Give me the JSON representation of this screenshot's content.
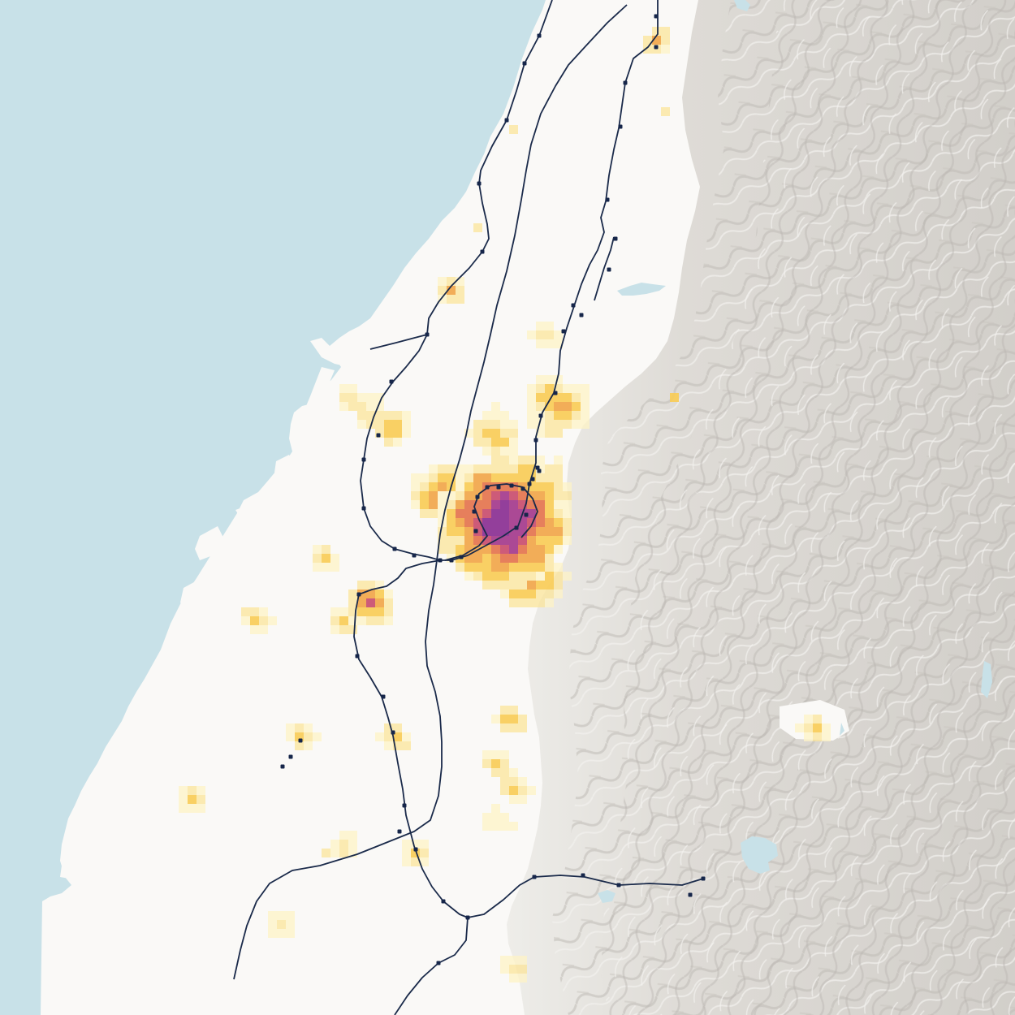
{
  "map": {
    "colors": {
      "sea": "#c8e1e8",
      "land": "#faf9f7",
      "mountain_base": "#dcdad5",
      "mountain_ridge": "#c4c1bb",
      "mountain_light": "#f1f0ed",
      "water_inland": "#c8e1e8",
      "rail": "#1a2a4a",
      "station": "#16264a"
    },
    "density_scale": [
      "#fdf3c6",
      "#fbe49a",
      "#f8cc57",
      "#f1a64a",
      "#e4744e",
      "#c94d6e",
      "#a43a8c",
      "#8a2f92"
    ],
    "layers": [
      "sea",
      "lowland",
      "mountains",
      "inland-water",
      "population-density",
      "rail-lines",
      "rail-stations"
    ]
  }
}
